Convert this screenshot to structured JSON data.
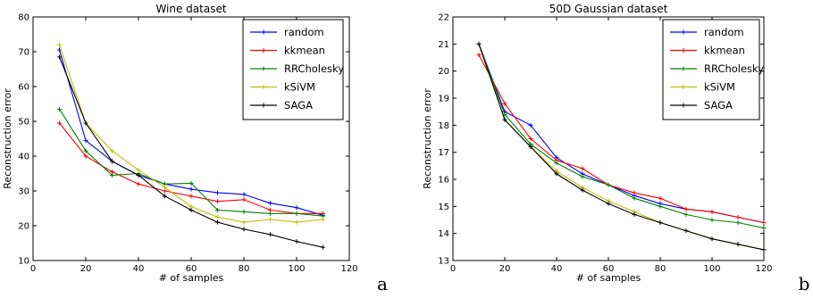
{
  "chart_data": [
    {
      "type": "line",
      "title": "Wine dataset",
      "xlabel": "# of samples",
      "ylabel": "Reconstruction error",
      "xlim": [
        0,
        120
      ],
      "ylim": [
        10,
        80
      ],
      "xticks": [
        0,
        20,
        40,
        60,
        80,
        100,
        120
      ],
      "yticks": [
        10,
        20,
        30,
        40,
        50,
        60,
        70,
        80
      ],
      "legend": "top-right",
      "grid": false,
      "panel_label": "a",
      "x": [
        10,
        20,
        30,
        40,
        50,
        60,
        70,
        80,
        90,
        100,
        110
      ],
      "series": [
        {
          "name": "random",
          "color": "#0000ff",
          "values": [
            70.5,
            44.5,
            38.5,
            34.5,
            32.0,
            30.5,
            29.5,
            29.0,
            26.5,
            25.2,
            23.0
          ]
        },
        {
          "name": "kkmean",
          "color": "#ff0000",
          "values": [
            49.5,
            40.0,
            35.5,
            32.0,
            30.0,
            28.5,
            27.0,
            27.5,
            24.5,
            23.5,
            23.5
          ]
        },
        {
          "name": "RRCholesky",
          "color": "#008000",
          "values": [
            53.5,
            41.5,
            34.5,
            35.0,
            32.0,
            32.2,
            24.5,
            24.0,
            23.5,
            23.5,
            22.8
          ]
        },
        {
          "name": "kSiVM",
          "color": "#bfbf00",
          "values": [
            72.0,
            49.5,
            41.5,
            36.0,
            31.0,
            25.5,
            22.5,
            21.0,
            21.8,
            21.0,
            21.8
          ]
        },
        {
          "name": "SAGA",
          "color": "#000000",
          "values": [
            68.5,
            49.5,
            38.5,
            34.5,
            28.5,
            24.5,
            21.0,
            19.0,
            17.5,
            15.5,
            13.8
          ]
        }
      ]
    },
    {
      "type": "line",
      "title": "50D Gaussian dataset",
      "xlabel": "# of samples",
      "ylabel": "Reconstruction error",
      "xlim": [
        0,
        120
      ],
      "ylim": [
        13,
        22
      ],
      "xticks": [
        0,
        20,
        40,
        60,
        80,
        100,
        120
      ],
      "yticks": [
        13,
        14,
        15,
        16,
        17,
        18,
        19,
        20,
        21,
        22
      ],
      "legend": "top-right",
      "grid": false,
      "panel_label": "b",
      "x": [
        10,
        20,
        30,
        40,
        50,
        60,
        70,
        80,
        90,
        100,
        110,
        120
      ],
      "series": [
        {
          "name": "random",
          "color": "#0000ff",
          "values": [
            21.0,
            18.5,
            18.0,
            16.8,
            16.2,
            15.8,
            15.4,
            15.1,
            14.9,
            14.8,
            14.6,
            14.4
          ]
        },
        {
          "name": "kkmean",
          "color": "#ff0000",
          "values": [
            20.6,
            18.8,
            17.5,
            16.7,
            16.4,
            15.8,
            15.5,
            15.3,
            14.9,
            14.8,
            14.6,
            14.4
          ]
        },
        {
          "name": "RRCholesky",
          "color": "#008000",
          "values": [
            21.0,
            18.4,
            17.3,
            16.6,
            16.1,
            15.8,
            15.3,
            15.0,
            14.7,
            14.5,
            14.4,
            14.2
          ]
        },
        {
          "name": "kSiVM",
          "color": "#bfbf00",
          "values": [
            21.0,
            18.2,
            17.2,
            16.3,
            15.7,
            15.2,
            14.8,
            14.4,
            14.1,
            13.8,
            13.6,
            13.4
          ]
        },
        {
          "name": "SAGA",
          "color": "#000000",
          "values": [
            21.0,
            18.2,
            17.2,
            16.2,
            15.6,
            15.1,
            14.7,
            14.4,
            14.1,
            13.8,
            13.6,
            13.4
          ]
        }
      ]
    }
  ]
}
